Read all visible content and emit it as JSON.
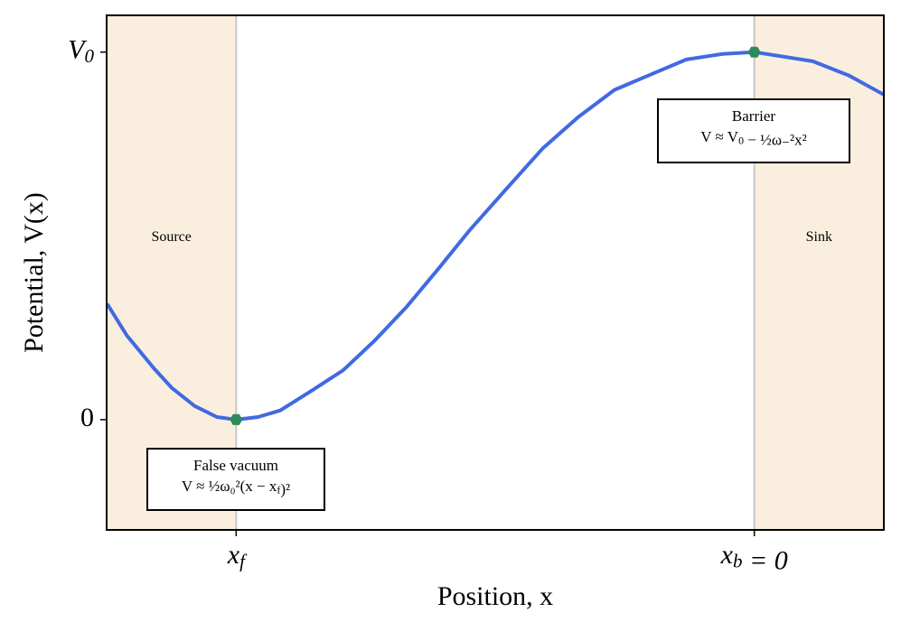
{
  "chart_data": {
    "type": "line",
    "xlabel": "Position, x",
    "ylabel": "Potential, V(x)",
    "x": [
      -1.249,
      -1.211,
      -1.159,
      -1.124,
      -1.08,
      -1.037,
      -1.0,
      -0.958,
      -0.915,
      -0.854,
      -0.793,
      -0.732,
      -0.671,
      -0.61,
      -0.549,
      -0.479,
      -0.409,
      -0.34,
      -0.27,
      -0.2,
      -0.131,
      -0.061,
      0,
      0.113,
      0.183,
      0.249
    ],
    "values": [
      0.315,
      0.229,
      0.14,
      0.086,
      0.037,
      0.007,
      0,
      0.007,
      0.025,
      0.079,
      0.135,
      0.216,
      0.307,
      0.41,
      0.516,
      0.627,
      0.737,
      0.823,
      0.897,
      0.939,
      0.98,
      0.995,
      1,
      0.975,
      0.936,
      0.885
    ],
    "color": "#4169e1",
    "markers": {
      "x": [
        -1,
        0
      ],
      "values": [
        0,
        1
      ],
      "color": "#2e8b57"
    },
    "regions": [
      {
        "label": "Source",
        "span": [
          -1.25,
          -1
        ],
        "color": "#faefdf"
      },
      {
        "label": "Sink",
        "span": [
          0,
          0.25
        ],
        "color": "#faefdf"
      }
    ],
    "annotations": [
      {
        "lines": [
          "False vacuum",
          "V ≈ ½ω₀²(x − x_f)²"
        ]
      },
      {
        "lines": [
          "Barrier",
          "V ≈ V_0 − ½ω₋²x²"
        ]
      }
    ],
    "xlim": [
      -1.25,
      0.25
    ],
    "ylim": [
      -0.3,
      1.1
    ],
    "xticks": [
      {
        "value": -1,
        "label": "x_f"
      },
      {
        "value": 0,
        "label": "x_b = 0"
      }
    ],
    "yticks": [
      0,
      {
        "value": 1,
        "label": "V_0"
      }
    ],
    "xgrid": true
  }
}
